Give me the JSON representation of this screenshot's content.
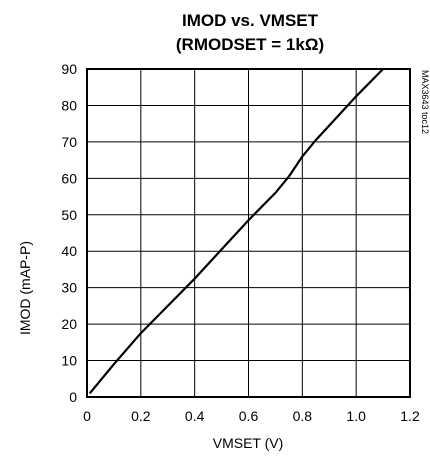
{
  "chart_data": {
    "type": "line",
    "title_line1": "IMOD vs. VMSET",
    "title_line2": "(RMODSET = 1kΩ)",
    "xlabel": "VMSET (V)",
    "ylabel": "IMOD (mAP-P)",
    "side_note": "MAX3643 toc12",
    "xlim": [
      0,
      1.2
    ],
    "ylim": [
      0,
      90
    ],
    "xticks": [
      "0",
      "0.2",
      "0.4",
      "0.6",
      "0.8",
      "1.0",
      "1.2"
    ],
    "yticks": [
      "0",
      "10",
      "20",
      "30",
      "40",
      "50",
      "60",
      "70",
      "80",
      "90"
    ],
    "grid": true,
    "series": [
      {
        "x": [
          0.01,
          0.1,
          0.2,
          0.3,
          0.4,
          0.5,
          0.6,
          0.7,
          0.75,
          0.8,
          0.85,
          0.9,
          1.0,
          1.1
        ],
        "y": [
          1,
          9,
          17.5,
          25,
          32.5,
          40.5,
          48.5,
          56,
          60.5,
          66,
          70.5,
          74.5,
          82.5,
          90
        ]
      }
    ]
  }
}
